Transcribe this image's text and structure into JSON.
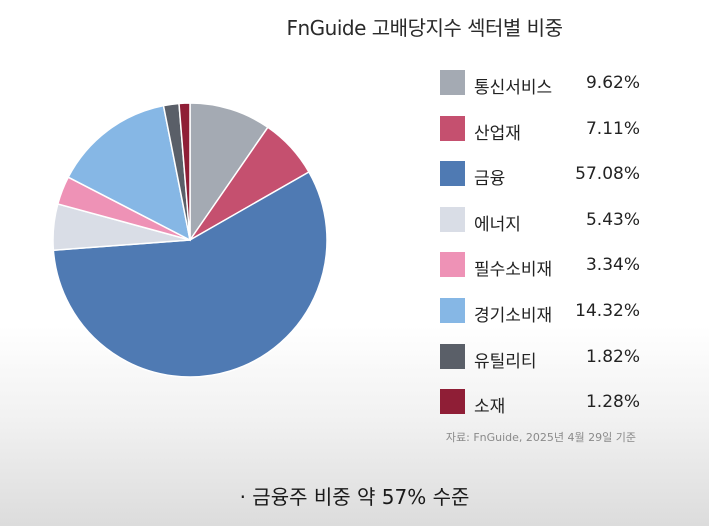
{
  "title": "FnGuide 고배당지수 섹터별 비중",
  "chart_data": {
    "type": "pie",
    "title": "FnGuide 고배당지수 섹터별 비중",
    "start_angle_deg": 0,
    "direction": "clockwise",
    "legend_position": "right",
    "slices": [
      {
        "label": "통신서비스",
        "value": 9.62,
        "value_label": "9.62%",
        "color": "#a4aab3"
      },
      {
        "label": "산업재",
        "value": 7.11,
        "value_label": "7.11%",
        "color": "#c5506f"
      },
      {
        "label": "금융",
        "value": 57.08,
        "value_label": "57.08%",
        "color": "#4f7ab3"
      },
      {
        "label": "에너지",
        "value": 5.43,
        "value_label": "5.43%",
        "color": "#d9dde6"
      },
      {
        "label": "필수소비재",
        "value": 3.34,
        "value_label": "3.34%",
        "color": "#ee92b6"
      },
      {
        "label": "경기소비재",
        "value": 14.32,
        "value_label": "14.32%",
        "color": "#86b7e5"
      },
      {
        "label": "유틸리티",
        "value": 1.82,
        "value_label": "1.82%",
        "color": "#5a5f68"
      },
      {
        "label": "소재",
        "value": 1.28,
        "value_label": "1.28%",
        "color": "#8f1e36"
      }
    ]
  },
  "source": "자료: FnGuide, 2025년 4월 29일 기준",
  "caption": "· 금융주 비중 약 57% 수준"
}
